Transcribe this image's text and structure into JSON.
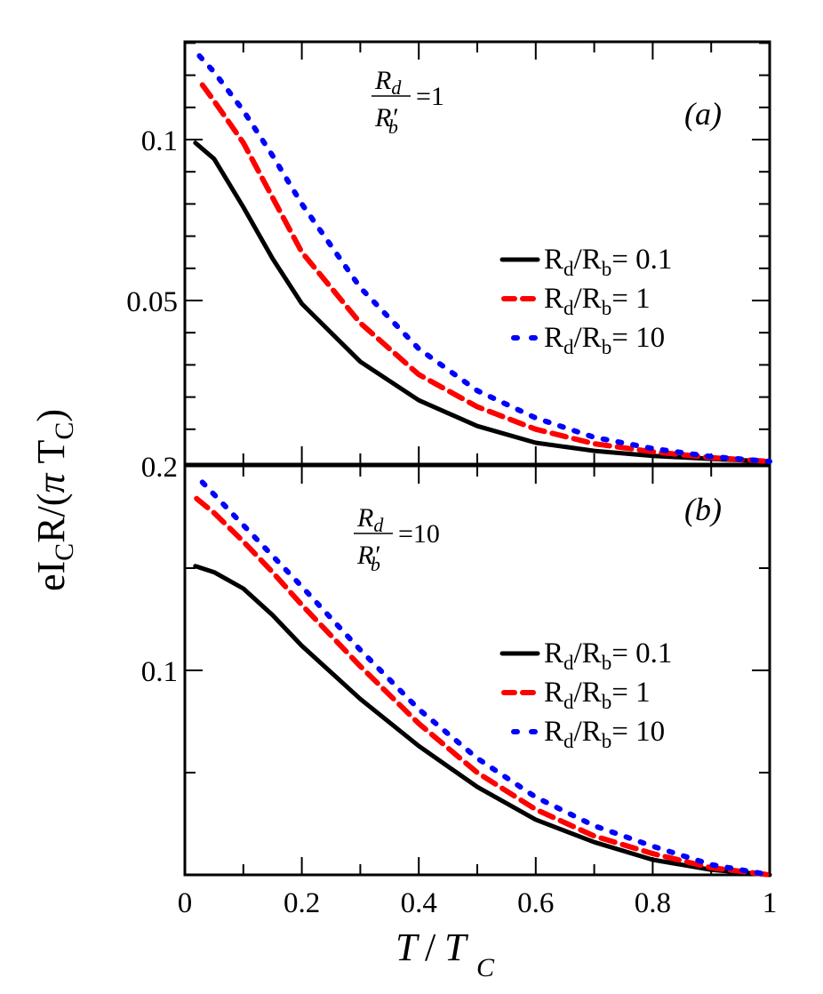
{
  "chart_data": [
    {
      "panel": "a",
      "type": "line",
      "panel_label": "(a)",
      "annotation": {
        "numerator": "R_d",
        "denominator": "R'_b",
        "equals": "=1"
      },
      "xlabel": "T/T_C",
      "ylabel": "eI_C R/(π T_C)",
      "xlim": [
        0,
        1
      ],
      "ylim": [
        0,
        0.13
      ],
      "y_major_ticks": [
        0.05,
        0.1
      ],
      "y_tick_labels": [
        "0.05",
        "0.1"
      ],
      "y_minor_step": 0.01,
      "x_major_ticks": [
        0,
        0.2,
        0.4,
        0.6,
        0.8,
        1
      ],
      "x_minor_step": 0.1,
      "legend_position": "right-middle",
      "series": [
        {
          "name": "R_d/R_b= 0.1",
          "label_main": "R",
          "sub1": "d",
          "mid": "/R",
          "sub2": "b",
          "tail": "= 0.1",
          "color": "#000000",
          "style": "solid",
          "x": [
            0.018,
            0.05,
            0.1,
            0.15,
            0.2,
            0.3,
            0.4,
            0.5,
            0.6,
            0.7,
            0.8,
            0.9,
            1.0
          ],
          "y": [
            0.099,
            0.094,
            0.079,
            0.063,
            0.049,
            0.031,
            0.019,
            0.011,
            0.0058,
            0.0033,
            0.0017,
            0.0008,
            0.0
          ]
        },
        {
          "name": "R_d/R_b= 1",
          "label_main": "R",
          "sub1": "d",
          "mid": "/R",
          "sub2": "b",
          "tail": "= 1",
          "color": "#ff0000",
          "style": "dashed",
          "x": [
            0.03,
            0.05,
            0.1,
            0.15,
            0.2,
            0.3,
            0.4,
            0.5,
            0.6,
            0.7,
            0.8,
            0.9,
            1.0
          ],
          "y": [
            0.117,
            0.112,
            0.099,
            0.082,
            0.065,
            0.043,
            0.027,
            0.017,
            0.01,
            0.0055,
            0.003,
            0.0012,
            0.0
          ]
        },
        {
          "name": "R_d/R_b= 10",
          "label_main": "R",
          "sub1": "d",
          "mid": "/R",
          "sub2": "b",
          "tail": "= 10",
          "color": "#0000ff",
          "style": "dotted",
          "x": [
            0.025,
            0.05,
            0.1,
            0.15,
            0.2,
            0.3,
            0.4,
            0.5,
            0.6,
            0.7,
            0.8,
            0.9,
            1.0
          ],
          "y": [
            0.126,
            0.121,
            0.109,
            0.095,
            0.08,
            0.054,
            0.035,
            0.022,
            0.0135,
            0.0075,
            0.004,
            0.0015,
            0.0
          ]
        }
      ]
    },
    {
      "panel": "b",
      "type": "line",
      "panel_label": "(b)",
      "annotation": {
        "numerator": "R_d",
        "denominator": "R'_b",
        "equals": "=10"
      },
      "xlabel": "T/T_C",
      "ylabel": "eI_C R/(π T_C)",
      "xlim": [
        0,
        1
      ],
      "ylim": [
        0,
        0.2
      ],
      "y_major_ticks": [
        0.1,
        0.2
      ],
      "y_tick_labels": [
        "0.1",
        "0.2"
      ],
      "y_minor_step": 0.05,
      "x_major_ticks": [
        0,
        0.2,
        0.4,
        0.6,
        0.8,
        1
      ],
      "x_minor_step": 0.1,
      "legend_position": "right-middle",
      "series": [
        {
          "name": "R_d/R_b= 0.1",
          "label_main": "R",
          "sub1": "d",
          "mid": "/R",
          "sub2": "b",
          "tail": "= 0.1",
          "color": "#000000",
          "style": "solid",
          "x": [
            0.018,
            0.05,
            0.1,
            0.15,
            0.2,
            0.3,
            0.4,
            0.5,
            0.6,
            0.7,
            0.8,
            0.9,
            1.0
          ],
          "y": [
            0.151,
            0.148,
            0.14,
            0.127,
            0.112,
            0.086,
            0.063,
            0.043,
            0.027,
            0.016,
            0.0074,
            0.0025,
            0.0
          ]
        },
        {
          "name": "R_d/R_b= 1",
          "label_main": "R",
          "sub1": "d",
          "mid": "/R",
          "sub2": "b",
          "tail": "= 1",
          "color": "#ff0000",
          "style": "dashed",
          "x": [
            0.02,
            0.05,
            0.1,
            0.15,
            0.2,
            0.3,
            0.4,
            0.5,
            0.6,
            0.7,
            0.8,
            0.9,
            1.0
          ],
          "y": [
            0.184,
            0.177,
            0.163,
            0.148,
            0.132,
            0.102,
            0.074,
            0.05,
            0.032,
            0.019,
            0.0104,
            0.0035,
            0.0
          ]
        },
        {
          "name": "R_d/R_b= 10",
          "label_main": "R",
          "sub1": "d",
          "mid": "/R",
          "sub2": "b",
          "tail": "= 10",
          "color": "#0000ff",
          "style": "dotted",
          "x": [
            0.03,
            0.05,
            0.1,
            0.15,
            0.2,
            0.3,
            0.4,
            0.5,
            0.6,
            0.7,
            0.8,
            0.9,
            1.0
          ],
          "y": [
            0.192,
            0.186,
            0.171,
            0.156,
            0.141,
            0.11,
            0.081,
            0.057,
            0.038,
            0.024,
            0.014,
            0.005,
            0.0
          ]
        }
      ]
    }
  ],
  "x_tick_labels": [
    "0",
    "0.2",
    "0.4",
    "0.6",
    "0.8",
    "1"
  ],
  "axis_titles": {
    "x_main": "T",
    "x_slash": "/",
    "x_T": "T",
    "x_sub": "C",
    "y_e": "eI",
    "y_sub": "C",
    "y_rest": "R/(",
    "y_pi": "π",
    "y_T": " T",
    "y_sub2": "C",
    "y_close": ")"
  },
  "colors": {
    "black": "#000000",
    "red": "#ff0000",
    "blue": "#0000ff"
  }
}
